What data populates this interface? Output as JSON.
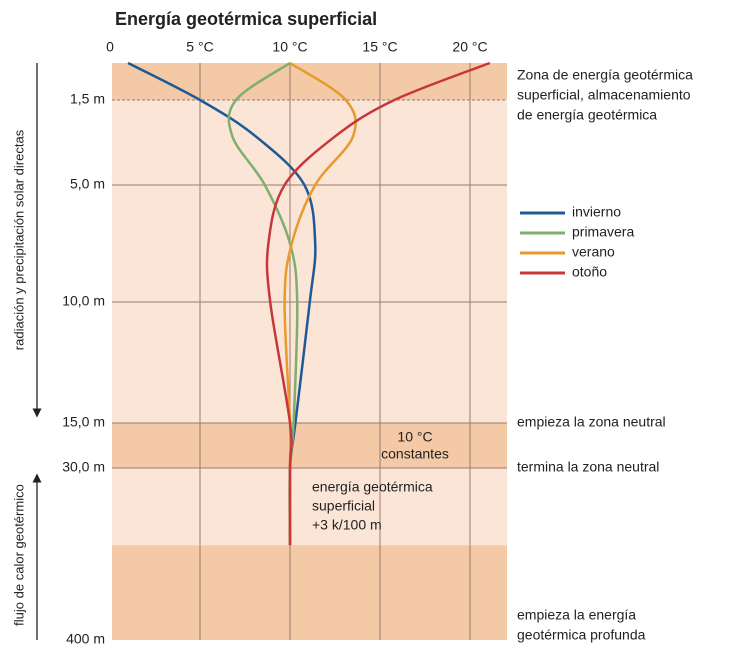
{
  "chart_data": {
    "type": "line",
    "title": "Energía geotérmica superficial",
    "xlim": [
      0,
      22
    ],
    "xticks": [
      0,
      {
        "value": 5,
        "label": "5 °C"
      },
      {
        "value": 10,
        "label": "10 °C"
      },
      {
        "value": 15,
        "label": "15 °C"
      },
      {
        "value": 20,
        "label": "20 °C"
      }
    ],
    "ylim": [
      0,
      400
    ],
    "yticks": [
      {
        "value": 1.5,
        "label": "1,5 m"
      },
      {
        "value": 5,
        "label": "5,0 m"
      },
      {
        "value": 10,
        "label": "10,0 m"
      },
      {
        "value": 15,
        "label": "15,0 m"
      },
      {
        "value": 30,
        "label": "30,0 m"
      },
      {
        "value": 400,
        "label": "400 m"
      }
    ],
    "y": [
      0,
      1.5,
      3,
      5,
      7.5,
      10,
      15,
      30,
      196
    ],
    "series": [
      {
        "name": "invierno",
        "color": "#1f5a96",
        "values": [
          1,
          5,
          8.1,
          10.8,
          11.4,
          11.1,
          10.3,
          10,
          10
        ]
      },
      {
        "name": "primavera",
        "color": "#7fae6e",
        "values": [
          10,
          7.0,
          6.8,
          8.6,
          10,
          10.4,
          10.2,
          10,
          10
        ]
      },
      {
        "name": "verano",
        "color": "#e89a2c",
        "values": [
          10,
          13.1,
          13.5,
          11.4,
          10.1,
          9.7,
          10,
          10,
          10
        ]
      },
      {
        "name": "otoño",
        "color": "#c7373a",
        "values": [
          21.1,
          15.8,
          12.5,
          9.7,
          8.8,
          8.9,
          10,
          10,
          10
        ]
      }
    ],
    "ylabel_top": "radiación y precipitación solar directas",
    "ylabel_bottom": "flujo de calor geotérmico",
    "annotations": {
      "zone_top": [
        "Zona de energía geotérmica",
        "superficial, almacenamiento",
        "de energía geotérmica"
      ],
      "neutral_start": "empieza la zona neutral",
      "neutral_end": "termina la zona neutral",
      "constant": [
        "10 °C",
        "constantes"
      ],
      "gradient": [
        "energía geotérmica",
        "superficial",
        "+3 k/100 m"
      ],
      "deep": [
        "empieza la energía",
        "geotérmica profunda"
      ]
    }
  }
}
